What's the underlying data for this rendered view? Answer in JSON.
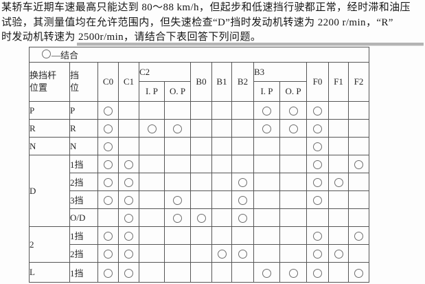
{
  "problem": {
    "lines": [
      "某轿车近期车速最高只能达到 80～88 km/h，但起步和低速挡行驶都正常，经时滞和油压",
      "试验，其测量值均在允许范围内，但失速检查“D”挡时发动机转速为 2200 r/min，“R”",
      "时发动机转速为 2500r/min，请结合下表回答下列问题。"
    ]
  },
  "table": {
    "legend_symbol": "○",
    "legend_text": "—结合",
    "header": {
      "lever_line1": "换挡杆",
      "lever_line2": "位置",
      "gear_line1": "挡",
      "gear_line2": "位",
      "c0": "C0",
      "c1": "C1",
      "c2": "C2",
      "c2_ip": "I. P",
      "c2_op": "O. P",
      "b0": "B0",
      "b1": "B1",
      "b2": "B2",
      "b3": "B3",
      "b3_ip": "I. P",
      "b3_op": "O. P",
      "f0": "F0",
      "f1": "F1",
      "f2": "F2"
    },
    "columns_order": [
      "C0",
      "C1",
      "C2 I.P",
      "C2 O.P",
      "B0",
      "B1",
      "B2",
      "B3 I.P",
      "B3 O.P",
      "F0",
      "F1",
      "F2"
    ],
    "engaged_symbol": "○",
    "sections": [
      {
        "lever": "P",
        "rows": [
          {
            "gear": "P",
            "cells": [
              1,
              0,
              0,
              0,
              0,
              0,
              0,
              1,
              1,
              1,
              0,
              0
            ]
          }
        ]
      },
      {
        "lever": "R",
        "rows": [
          {
            "gear": "R",
            "cells": [
              1,
              0,
              1,
              1,
              0,
              0,
              0,
              1,
              1,
              1,
              0,
              0
            ]
          }
        ]
      },
      {
        "lever": "N",
        "rows": [
          {
            "gear": "N",
            "cells": [
              1,
              0,
              0,
              0,
              0,
              0,
              0,
              0,
              0,
              1,
              0,
              0
            ]
          }
        ]
      },
      {
        "lever": "D",
        "rows": [
          {
            "gear": "1挡",
            "cells": [
              1,
              1,
              0,
              0,
              0,
              0,
              0,
              0,
              0,
              1,
              0,
              1
            ]
          },
          {
            "gear": "2挡",
            "cells": [
              1,
              1,
              0,
              0,
              0,
              0,
              1,
              0,
              0,
              1,
              1,
              0
            ]
          },
          {
            "gear": "3挡",
            "cells": [
              1,
              1,
              0,
              1,
              0,
              0,
              1,
              0,
              0,
              1,
              0,
              0
            ]
          },
          {
            "gear": "O/D",
            "cells": [
              0,
              1,
              0,
              1,
              1,
              0,
              1,
              0,
              0,
              0,
              0,
              0
            ]
          }
        ]
      },
      {
        "lever": "2",
        "rows": [
          {
            "gear": "1挡",
            "cells": [
              1,
              1,
              0,
              0,
              0,
              0,
              0,
              0,
              0,
              1,
              0,
              1
            ]
          },
          {
            "gear": "2挡",
            "cells": [
              1,
              1,
              0,
              0,
              0,
              1,
              1,
              0,
              0,
              1,
              1,
              0
            ]
          }
        ]
      },
      {
        "lever": "L",
        "rows": [
          {
            "gear": "1挡",
            "cells": [
              1,
              1,
              0,
              0,
              0,
              0,
              0,
              1,
              1,
              1,
              0,
              1
            ]
          }
        ]
      }
    ]
  }
}
